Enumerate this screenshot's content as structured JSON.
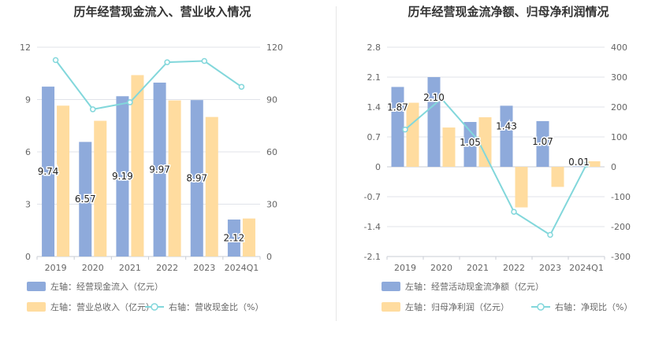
{
  "chart_data": [
    {
      "type": "bar",
      "title": "历年经营现金流入、营业收入情况",
      "categories": [
        "2019",
        "2020",
        "2021",
        "2022",
        "2023",
        "2024Q1"
      ],
      "y_left": {
        "ticks": [
          0,
          3,
          6,
          9,
          12
        ],
        "ylim": [
          0,
          12
        ]
      },
      "y_right": {
        "ticks": [
          0,
          30,
          60,
          90,
          120
        ],
        "ylim": [
          0,
          120
        ]
      },
      "series": [
        {
          "name": "左轴：经营现金流入（亿元）",
          "kind": "bar",
          "axis": "left",
          "color": "#8eaadb",
          "values": [
            9.74,
            6.57,
            9.19,
            9.97,
            8.97,
            2.12
          ],
          "labels": [
            "9.74",
            "6.57",
            "9.19",
            "9.97",
            "8.97",
            "2.12"
          ]
        },
        {
          "name": "左轴：营业总收入（亿元）",
          "kind": "bar",
          "axis": "left",
          "color": "#ffdc9f",
          "values": [
            8.65,
            7.78,
            10.4,
            8.95,
            8.0,
            2.18
          ]
        },
        {
          "name": "右轴：营收现金比（%）",
          "kind": "line",
          "axis": "right",
          "color": "#82d7db",
          "values": [
            112.6,
            84.4,
            88.4,
            111.4,
            112.1,
            97.3
          ]
        }
      ],
      "grid": true,
      "legend": "bottom"
    },
    {
      "type": "bar",
      "title": "历年经营现金流净额、归母净利润情况",
      "categories": [
        "2019",
        "2020",
        "2021",
        "2022",
        "2023",
        "2024Q1"
      ],
      "y_left": {
        "ticks": [
          -2.1,
          -1.4,
          -0.7,
          0,
          0.7,
          1.4,
          2.1,
          2.8
        ],
        "ylim": [
          -2.1,
          2.8
        ]
      },
      "y_right": {
        "ticks": [
          -300,
          -200,
          -100,
          0,
          100,
          200,
          300,
          400
        ],
        "ylim": [
          -300,
          400
        ]
      },
      "series": [
        {
          "name": "左轴：经营活动现金流净额（亿元）",
          "kind": "bar",
          "axis": "left",
          "color": "#8eaadb",
          "values": [
            1.87,
            2.1,
            1.05,
            1.43,
            1.07,
            0.01
          ],
          "labels": [
            "1.87",
            "2.10",
            "1.05",
            "1.43",
            "1.07",
            "0.01"
          ]
        },
        {
          "name": "左轴：归母净利润（亿元）",
          "kind": "bar",
          "axis": "left",
          "color": "#ffdc9f",
          "values": [
            1.5,
            0.92,
            1.16,
            -0.95,
            -0.47,
            0.13
          ]
        },
        {
          "name": "右轴：净现比（%）",
          "kind": "line",
          "axis": "right",
          "color": "#82d7db",
          "values": [
            124.7,
            228.3,
            90.5,
            -150.5,
            -227.7,
            7.7
          ]
        }
      ],
      "grid": true,
      "legend": "bottom"
    }
  ]
}
